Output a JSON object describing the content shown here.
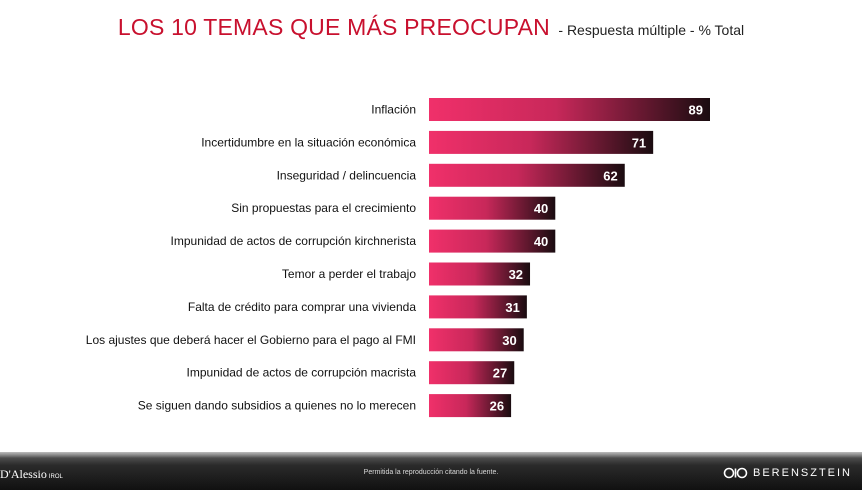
{
  "header": {
    "title": "LOS 10 TEMAS QUE MÁS PREOCUPAN",
    "subtitle": "- Respuesta múltiple - % Total"
  },
  "chart_data": {
    "type": "bar",
    "orientation": "horizontal",
    "categories": [
      "Inflación",
      "Incertidumbre en la situación económica",
      "Inseguridad / delincuencia",
      "Sin propuestas para el crecimiento",
      "Impunidad de actos de corrupción kirchnerista",
      "Temor a perder el trabajo",
      "Falta de crédito para comprar una vivienda",
      "Los ajustes que deberá hacer el Gobierno para el pago al FMI",
      "Impunidad de actos de corrupción macrista",
      "Se siguen dando subsidios a quienes no lo merecen"
    ],
    "values": [
      89,
      71,
      62,
      40,
      40,
      32,
      31,
      30,
      27,
      26
    ],
    "xlim": [
      0,
      89
    ],
    "grid": false,
    "legend": "none",
    "colors": {
      "bar_start": "#f0306a",
      "bar_end": "#1a0c10",
      "label": "#111111",
      "value_text": "#ffffff"
    }
  },
  "footer": {
    "left_brand": "D'Alessio",
    "left_brand_suffix": "IROL",
    "notice": "Permitida la reproducción citando la fuente.",
    "right_brand": "BERENSZTEIN",
    "right_logo_icon": "berensztein-logo-icon"
  }
}
